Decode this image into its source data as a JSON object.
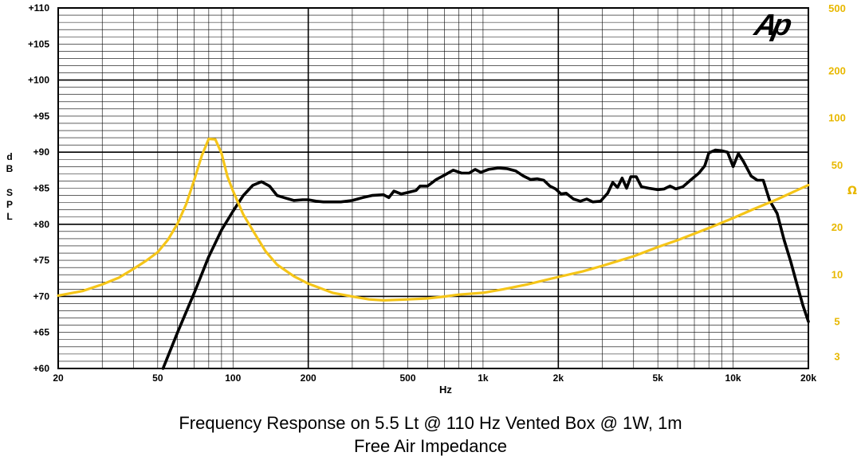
{
  "chart_data": {
    "type": "line",
    "title": "Frequency Response on 5.5 Lt @ 110 Hz Vented Box @ 1W, 1m",
    "subtitle": "Free Air Impedance",
    "logo_text": "Ap",
    "xlabel": "Hz",
    "ylabel": "dB SPL",
    "y2label": "Ω",
    "xscale": "log",
    "xlim": [
      20,
      20000
    ],
    "ylim": [
      60,
      110
    ],
    "y2scale": "log",
    "y2lim": [
      2.5,
      500
    ],
    "grid": true,
    "x_tick_labels": [
      {
        "value": 20,
        "label": "20"
      },
      {
        "value": 50,
        "label": "50"
      },
      {
        "value": 100,
        "label": "100"
      },
      {
        "value": 200,
        "label": "200"
      },
      {
        "value": 500,
        "label": "500"
      },
      {
        "value": 1000,
        "label": "1k"
      },
      {
        "value": 2000,
        "label": "2k"
      },
      {
        "value": 5000,
        "label": "5k"
      },
      {
        "value": 10000,
        "label": "10k"
      },
      {
        "value": 20000,
        "label": "20k"
      }
    ],
    "y_tick_labels": [
      {
        "value": 110,
        "label": "+110"
      },
      {
        "value": 105,
        "label": "+105"
      },
      {
        "value": 100,
        "label": "+100"
      },
      {
        "value": 95,
        "label": "+95"
      },
      {
        "value": 90,
        "label": "+90"
      },
      {
        "value": 85,
        "label": "+85"
      },
      {
        "value": 80,
        "label": "+80"
      },
      {
        "value": 75,
        "label": "+75"
      },
      {
        "value": 70,
        "label": "+70"
      },
      {
        "value": 65,
        "label": "+65"
      },
      {
        "value": 60,
        "label": "+60"
      }
    ],
    "y2_tick_labels": [
      {
        "value": 500,
        "label": "500"
      },
      {
        "value": 200,
        "label": "200"
      },
      {
        "value": 100,
        "label": "100"
      },
      {
        "value": 50,
        "label": "50"
      },
      {
        "value": 20,
        "label": "20"
      },
      {
        "value": 10,
        "label": "10"
      },
      {
        "value": 5,
        "label": "5"
      },
      {
        "value": 3,
        "label": "3"
      }
    ],
    "series": [
      {
        "axis": "left",
        "color": "#000000",
        "points": [
          [
            52.5,
            60
          ],
          [
            60,
            65
          ],
          [
            70,
            70.5
          ],
          [
            80,
            75.5
          ],
          [
            90,
            79.2
          ],
          [
            100,
            81.8
          ],
          [
            110,
            84
          ],
          [
            120,
            85.4
          ],
          [
            130,
            85.9
          ],
          [
            140,
            85.3
          ],
          [
            150,
            84
          ],
          [
            160,
            83.7
          ],
          [
            175,
            83.3
          ],
          [
            190,
            83.4
          ],
          [
            200,
            83.4
          ],
          [
            215,
            83.2
          ],
          [
            230,
            83.1
          ],
          [
            250,
            83.1
          ],
          [
            270,
            83.1
          ],
          [
            300,
            83.3
          ],
          [
            330,
            83.7
          ],
          [
            360,
            84
          ],
          [
            400,
            84.1
          ],
          [
            420,
            83.7
          ],
          [
            440,
            84.6
          ],
          [
            470,
            84.2
          ],
          [
            500,
            84.4
          ],
          [
            540,
            84.7
          ],
          [
            560,
            85.3
          ],
          [
            600,
            85.3
          ],
          [
            650,
            86.2
          ],
          [
            700,
            86.8
          ],
          [
            760,
            87.5
          ],
          [
            820,
            87.1
          ],
          [
            880,
            87.1
          ],
          [
            930,
            87.6
          ],
          [
            980,
            87.2
          ],
          [
            1050,
            87.6
          ],
          [
            1150,
            87.8
          ],
          [
            1250,
            87.7
          ],
          [
            1350,
            87.4
          ],
          [
            1450,
            86.7
          ],
          [
            1550,
            86.2
          ],
          [
            1650,
            86.3
          ],
          [
            1750,
            86.1
          ],
          [
            1850,
            85.3
          ],
          [
            1950,
            84.9
          ],
          [
            2050,
            84.2
          ],
          [
            2150,
            84.3
          ],
          [
            2300,
            83.5
          ],
          [
            2450,
            83.2
          ],
          [
            2600,
            83.5
          ],
          [
            2750,
            83.1
          ],
          [
            2950,
            83.2
          ],
          [
            3150,
            84.3
          ],
          [
            3300,
            85.8
          ],
          [
            3450,
            85.1
          ],
          [
            3600,
            86.4
          ],
          [
            3750,
            85
          ],
          [
            3900,
            86.6
          ],
          [
            4100,
            86.6
          ],
          [
            4300,
            85.2
          ],
          [
            4600,
            85
          ],
          [
            5000,
            84.8
          ],
          [
            5300,
            84.9
          ],
          [
            5600,
            85.3
          ],
          [
            5900,
            84.9
          ],
          [
            6300,
            85.2
          ],
          [
            6800,
            86.2
          ],
          [
            7300,
            87.1
          ],
          [
            7700,
            88.1
          ],
          [
            8000,
            89.9
          ],
          [
            8500,
            90.3
          ],
          [
            9000,
            90.2
          ],
          [
            9500,
            90
          ],
          [
            10000,
            88
          ],
          [
            10500,
            89.8
          ],
          [
            11000,
            88.7
          ],
          [
            11800,
            86.7
          ],
          [
            12500,
            86.1
          ],
          [
            13200,
            86.1
          ],
          [
            14000,
            83.3
          ],
          [
            15000,
            81.5
          ],
          [
            16000,
            77.8
          ],
          [
            17000,
            74.8
          ],
          [
            18000,
            71.7
          ],
          [
            19000,
            68.8
          ],
          [
            20000,
            66.5
          ]
        ]
      },
      {
        "axis": "right",
        "color": "#f5c518",
        "points": [
          [
            20,
            7.3
          ],
          [
            25,
            7.8
          ],
          [
            30,
            8.6
          ],
          [
            35,
            9.5
          ],
          [
            40,
            10.8
          ],
          [
            45,
            12.2
          ],
          [
            50,
            13.8
          ],
          [
            55,
            16.6
          ],
          [
            60,
            21
          ],
          [
            65,
            28
          ],
          [
            70,
            40
          ],
          [
            75,
            57
          ],
          [
            80,
            73
          ],
          [
            85,
            72.5
          ],
          [
            90,
            59
          ],
          [
            95,
            42
          ],
          [
            100,
            34
          ],
          [
            110,
            24
          ],
          [
            120,
            19
          ],
          [
            135,
            14
          ],
          [
            150,
            11.5
          ],
          [
            175,
            9.7
          ],
          [
            200,
            8.7
          ],
          [
            250,
            7.6
          ],
          [
            300,
            7.2
          ],
          [
            350,
            6.9
          ],
          [
            400,
            6.8
          ],
          [
            500,
            6.9
          ],
          [
            600,
            7
          ],
          [
            700,
            7.2
          ],
          [
            800,
            7.4
          ],
          [
            1000,
            7.6
          ],
          [
            1200,
            8
          ],
          [
            1500,
            8.6
          ],
          [
            2000,
            9.6
          ],
          [
            2500,
            10.4
          ],
          [
            3000,
            11.3
          ],
          [
            4000,
            13
          ],
          [
            5000,
            14.9
          ],
          [
            6000,
            16.5
          ],
          [
            8000,
            19.7
          ],
          [
            10000,
            22.8
          ],
          [
            12000,
            25.9
          ],
          [
            15000,
            30
          ],
          [
            18000,
            34.3
          ],
          [
            20000,
            37
          ]
        ]
      }
    ]
  }
}
